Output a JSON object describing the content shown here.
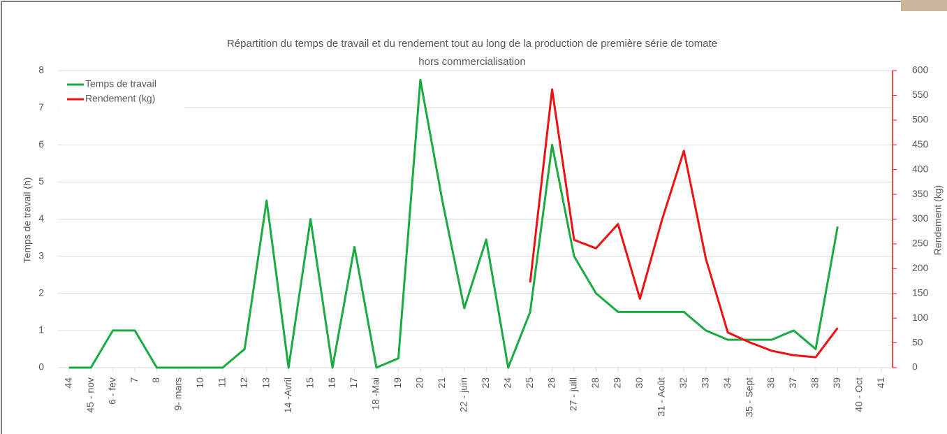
{
  "chart_data": {
    "type": "line",
    "title": "Répartition du temps de travail et du rendement tout au long de la production de première série de tomate hors commercialisation",
    "y_label": "Temps de travail (h)",
    "y2_label": "Rendement (kg)",
    "categories": [
      "44",
      "45 - nov",
      "6 - fev",
      "7",
      "8",
      "9- mars",
      "10",
      "11",
      "12",
      "13",
      "14 -Avril",
      "15",
      "16",
      "17",
      "18 -Mai",
      "19",
      "20",
      "21",
      "22 - juin",
      "23",
      "24",
      "25",
      "26",
      "27 - juill",
      "28",
      "29",
      "30",
      "31 - Août",
      "32",
      "33",
      "34",
      "35 - Sept",
      "36",
      "37",
      "38",
      "39",
      "40 - Oct",
      "41"
    ],
    "series": [
      {
        "name": "Temps de travail",
        "color": "#1aab40",
        "axis": "y",
        "values": [
          0,
          0,
          1,
          1,
          0,
          0,
          0,
          0,
          0.5,
          4.5,
          0,
          4,
          0,
          3.25,
          0,
          0.25,
          7.75,
          4.5,
          1.6,
          3.45,
          0,
          1.5,
          6,
          3,
          2,
          1.5,
          1.5,
          1.5,
          1.5,
          1,
          0.75,
          0.75,
          0.75,
          1,
          0.5,
          3.8,
          null,
          null
        ]
      },
      {
        "name": "Rendement (kg)",
        "color": "#ee1111",
        "axis": "y2",
        "values": [
          null,
          null,
          null,
          null,
          null,
          null,
          null,
          null,
          null,
          null,
          null,
          null,
          null,
          null,
          null,
          null,
          null,
          null,
          null,
          null,
          null,
          172,
          562,
          258,
          241,
          290,
          139,
          298,
          438,
          220,
          71,
          51,
          34,
          25,
          21,
          80,
          null,
          null
        ]
      }
    ],
    "ylim": [
      0,
      8
    ],
    "yticks": [
      0,
      1,
      2,
      3,
      4,
      5,
      6,
      7,
      8
    ],
    "y2lim": [
      0,
      600
    ],
    "y2ticks": [
      0,
      50,
      100,
      150,
      200,
      250,
      300,
      350,
      400,
      450,
      500,
      550,
      600
    ],
    "y2_color": "#ee1111",
    "grid": true,
    "legend": "top-left"
  }
}
